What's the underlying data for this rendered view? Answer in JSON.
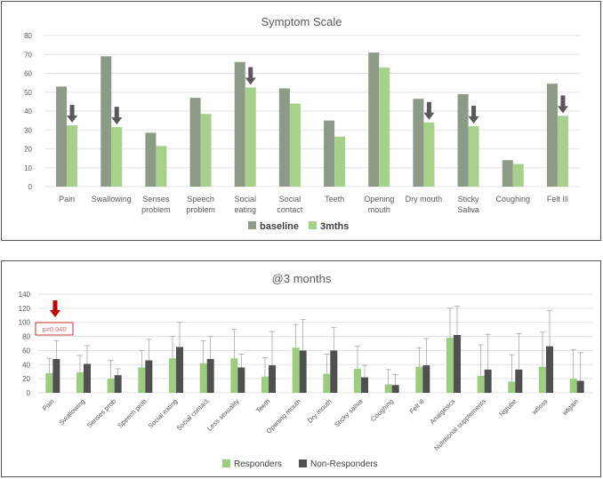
{
  "colors": {
    "baseline": "#8c9a87",
    "three_mths": "#a7d08c",
    "responders": "#9dcc80",
    "non_responders": "#505050",
    "arrow": "#595959",
    "red_arrow": "#c00000",
    "grid": "#e3e3e3",
    "error_bar": "#a6a6a6"
  },
  "chart_data": [
    {
      "type": "bar",
      "title": "Symptom Scale",
      "categories": [
        [
          "Pain"
        ],
        [
          "Swallowing"
        ],
        [
          "Senses",
          "problem"
        ],
        [
          "Speech",
          "problem"
        ],
        [
          "Social",
          "eating"
        ],
        [
          "Social",
          "contact"
        ],
        [
          "Teeth"
        ],
        [
          "Opening",
          "mouth"
        ],
        [
          "Dry mouth"
        ],
        [
          "Sticky",
          "Saliva"
        ],
        [
          "Coughing"
        ],
        [
          "Felt Ill"
        ]
      ],
      "series": [
        {
          "name": "baseline",
          "values": [
            53,
            69,
            28.5,
            47,
            66,
            52,
            35,
            71,
            46.5,
            49,
            14,
            54.5
          ]
        },
        {
          "name": "3mths",
          "values": [
            32.5,
            31.5,
            21.5,
            38.5,
            52.5,
            44,
            26.5,
            63,
            34,
            32,
            12,
            37.5
          ]
        }
      ],
      "arrow_markers": [
        0,
        1,
        4,
        8,
        9,
        11
      ],
      "yticks": [
        "0",
        "10",
        "20",
        "30",
        "40",
        "50",
        "60",
        "70",
        "80"
      ],
      "ylim": [
        0,
        80
      ],
      "grid": true,
      "legend_position": "bottom"
    },
    {
      "type": "bar",
      "title": "@3 months",
      "categories": [
        "Pain",
        "Swallowing",
        "Senses prob",
        "Speech prob",
        "Social eating",
        "Social contact",
        "Less sexuality",
        "Teeth",
        "Opening mouth",
        "Dry mouth",
        "Sticky saliva",
        "Coughing",
        "Felt ill",
        "Analgesics",
        "Nutritional supplements",
        "Ngtube",
        "wtloss",
        "wtgain"
      ],
      "series": [
        {
          "name": "Responders",
          "values": [
            28,
            29,
            20,
            36,
            49,
            42,
            49,
            23,
            64,
            27,
            34,
            12,
            37,
            78,
            24,
            16,
            37,
            20
          ],
          "error_high": [
            49,
            53,
            46,
            60,
            80,
            74,
            90,
            50,
            97,
            55,
            66,
            33,
            64,
            120,
            68,
            54,
            86,
            61
          ]
        },
        {
          "name": "Non-Responders",
          "values": [
            48,
            41,
            25,
            46,
            65,
            48,
            36,
            39,
            60,
            60,
            22,
            11,
            39,
            82,
            33,
            33,
            66,
            17
          ],
          "error_high": [
            74,
            67,
            34,
            76,
            100,
            80,
            55,
            87,
            104,
            93,
            39,
            26,
            77,
            123,
            83,
            84,
            117,
            57
          ]
        }
      ],
      "annotation": "p=0.040",
      "annotation_category": 0,
      "yticks": [
        "0",
        "20",
        "40",
        "60",
        "80",
        "100",
        "120",
        "140"
      ],
      "ylim": [
        0,
        140
      ],
      "grid": true,
      "legend_position": "bottom"
    }
  ]
}
